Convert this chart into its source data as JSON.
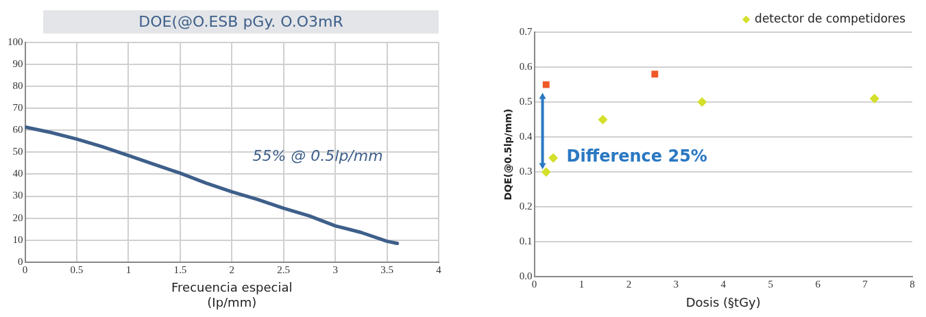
{
  "chart_data": [
    {
      "type": "line",
      "title": "DOE(@O.ESB pGy. O.O3mR",
      "xlabel": "Frecuencia especial\n(Ip/mm)",
      "x": [
        0,
        0.25,
        0.5,
        0.75,
        1,
        1.25,
        1.5,
        1.75,
        2,
        2.25,
        2.5,
        2.75,
        3,
        3.25,
        3.5,
        3.6
      ],
      "series": [
        {
          "color": "#3e5f8a",
          "values": [
            61.5,
            59,
            56,
            52.5,
            48.5,
            44.5,
            40.5,
            36,
            32,
            28.5,
            24.5,
            21,
            16.5,
            13.5,
            9.5,
            8.5
          ]
        }
      ],
      "xlim": [
        0,
        4
      ],
      "xticks": [
        0,
        0.5,
        1,
        1.5,
        2,
        2.5,
        3,
        3.5,
        4
      ],
      "ylim": [
        0,
        100
      ],
      "yticks": [
        0,
        10,
        20,
        30,
        40,
        50,
        60,
        70,
        80,
        90,
        100
      ],
      "annotations": [
        "55% @ 0.5lp/mm"
      ],
      "grid": true,
      "legend": false,
      "marker": "none",
      "line_style": "solid"
    },
    {
      "type": "scatter",
      "xlabel": "Dosis (§tGy)",
      "ylabel": "DQE(@0.5lp/mm)",
      "series": [
        {
          "color": "#f05a28",
          "marker": "square",
          "x": [
            0.25,
            2.55
          ],
          "values": [
            0.55,
            0.58
          ]
        },
        {
          "name": "detector de competidores",
          "color": "#d4e02a",
          "marker": "diamond",
          "x": [
            0.25,
            0.4,
            1.45,
            3.55,
            7.2
          ],
          "values": [
            0.3,
            0.34,
            0.45,
            0.5,
            0.51
          ]
        }
      ],
      "xlim": [
        0,
        8
      ],
      "xticks": [
        0,
        1,
        2,
        3,
        4,
        5,
        6,
        7,
        8
      ],
      "ylim": [
        0,
        0.7
      ],
      "yticks": [
        {
          "value": 0,
          "label": "0.0"
        },
        0.1,
        0.2,
        0.3,
        0.4,
        0.5,
        0.6,
        0.7
      ],
      "annotations": [
        "Difference 25%"
      ],
      "grid": "y",
      "legend": "top right"
    }
  ]
}
